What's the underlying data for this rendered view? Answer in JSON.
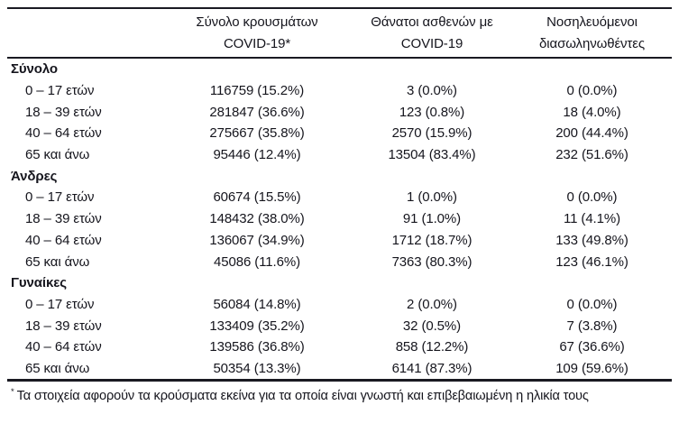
{
  "table": {
    "header": {
      "cases_line1": "Σύνολο κρουσμάτων",
      "cases_line2": "COVID-19*",
      "deaths_line1": "Θάνατοι ασθενών με",
      "deaths_line2": "COVID-19",
      "intubated_line1": "Νοσηλευόμενοι",
      "intubated_line2": "διασωληνωθέντες"
    },
    "sections": [
      {
        "title": "Σύνολο",
        "rows": [
          {
            "label": "0 – 17 ετών",
            "cases": "116759 (15.2%)",
            "deaths": "3 (0.0%)",
            "intubated": "0 (0.0%)"
          },
          {
            "label": "18 – 39 ετών",
            "cases": "281847 (36.6%)",
            "deaths": "123 (0.8%)",
            "intubated": "18 (4.0%)"
          },
          {
            "label": "40 – 64 ετών",
            "cases": "275667 (35.8%)",
            "deaths": "2570 (15.9%)",
            "intubated": "200 (44.4%)"
          },
          {
            "label": "65 και άνω",
            "cases": "95446 (12.4%)",
            "deaths": "13504 (83.4%)",
            "intubated": "232 (51.6%)"
          }
        ]
      },
      {
        "title": "Άνδρες",
        "rows": [
          {
            "label": "0 – 17 ετών",
            "cases": "60674 (15.5%)",
            "deaths": "1 (0.0%)",
            "intubated": "0 (0.0%)"
          },
          {
            "label": "18 – 39 ετών",
            "cases": "148432 (38.0%)",
            "deaths": "91 (1.0%)",
            "intubated": "11 (4.1%)"
          },
          {
            "label": "40 – 64 ετών",
            "cases": "136067 (34.9%)",
            "deaths": "1712 (18.7%)",
            "intubated": "133 (49.8%)"
          },
          {
            "label": "65 και άνω",
            "cases": "45086 (11.6%)",
            "deaths": "7363 (80.3%)",
            "intubated": "123 (46.1%)"
          }
        ]
      },
      {
        "title": "Γυναίκες",
        "rows": [
          {
            "label": "0 – 17 ετών",
            "cases": "56084 (14.8%)",
            "deaths": "2 (0.0%)",
            "intubated": "0 (0.0%)"
          },
          {
            "label": "18 – 39 ετών",
            "cases": "133409 (35.2%)",
            "deaths": "32 (0.5%)",
            "intubated": "7 (3.8%)"
          },
          {
            "label": "40 – 64 ετών",
            "cases": "139586 (36.8%)",
            "deaths": "858 (12.2%)",
            "intubated": "67 (36.6%)"
          },
          {
            "label": "65 και άνω",
            "cases": "50354 (13.3%)",
            "deaths": "6141 (87.3%)",
            "intubated": "109 (59.6%)"
          }
        ]
      }
    ],
    "footnote_marker": "*",
    "footnote_text": "Τα στοιχεία αφορούν τα κρούσματα εκείνα για τα οποία είναι γνωστή και επιβεβαιωμένη η ηλικία τους"
  },
  "colors": {
    "text": "#15151d",
    "rule": "#1a1a22",
    "background": "#ffffff"
  }
}
